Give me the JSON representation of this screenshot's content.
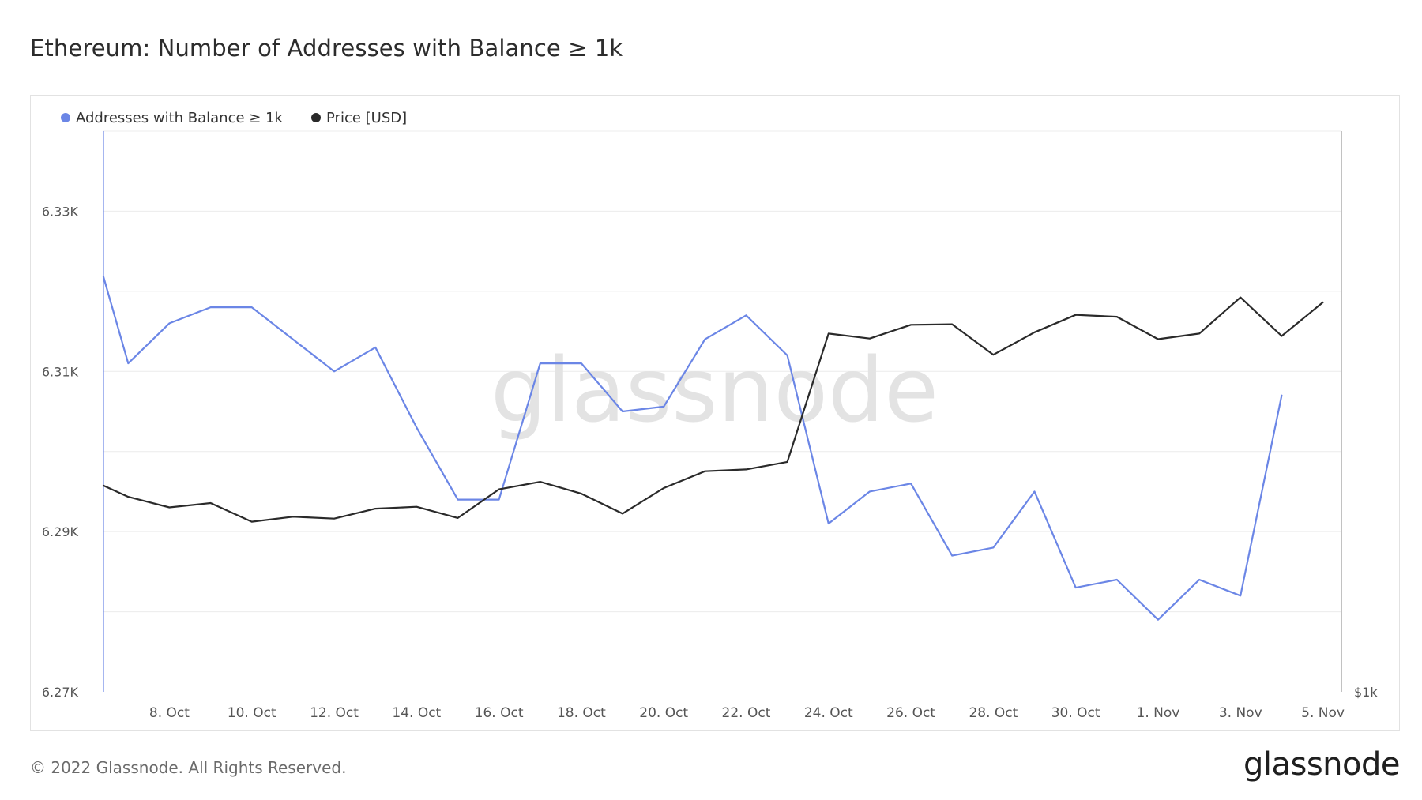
{
  "page": {
    "title": "Ethereum: Number of Addresses with Balance ≥ 1k",
    "copyright": "© 2022 Glassnode. All Rights Reserved.",
    "brand": "glassnode",
    "watermark": "glassnode"
  },
  "colors": {
    "addresses": "#6b86e6",
    "price": "#2a2a2a",
    "grid": "#ececec",
    "watermark": "#e3e3e3",
    "tick_text": "#555555"
  },
  "chart_data": {
    "type": "line",
    "legend_position": "top-left",
    "grid": true,
    "x_ticks": [
      "8. Oct",
      "10. Oct",
      "12. Oct",
      "14. Oct",
      "16. Oct",
      "18. Oct",
      "20. Oct",
      "22. Oct",
      "24. Oct",
      "26. Oct",
      "28. Oct",
      "30. Oct",
      "1. Nov",
      "3. Nov",
      "5. Nov"
    ],
    "x_tick_days": [
      8,
      10,
      12,
      14,
      16,
      18,
      20,
      22,
      24,
      26,
      28,
      30,
      32,
      34,
      36
    ],
    "x_range_days": [
      6.4,
      36.45
    ],
    "left_axis": {
      "ticks": [
        "6.27K",
        "6.29K",
        "6.31K",
        "6.33K"
      ],
      "tick_values": [
        6270,
        6290,
        6310,
        6330
      ],
      "range": [
        6270,
        6340
      ]
    },
    "right_axis": {
      "ticks": [
        "$1k"
      ]
    },
    "series": [
      {
        "name": "Addresses with Balance ≥ 1k",
        "axis": "left",
        "days": [
          6.4,
          7,
          8,
          9,
          10,
          11,
          12,
          13,
          14,
          15,
          16,
          17,
          18,
          19,
          20,
          21,
          22,
          23,
          24,
          25,
          26,
          27,
          28,
          29,
          30,
          31,
          32,
          33,
          34,
          35
        ],
        "values": [
          6321.8,
          6311,
          6316,
          6318,
          6318,
          6314,
          6310,
          6313,
          6303,
          6294,
          6294,
          6311,
          6311,
          6305,
          6305.6,
          6314,
          6317,
          6312,
          6291,
          6295,
          6296,
          6287,
          6288,
          6295,
          6283,
          6284,
          6279,
          6284,
          6282,
          6307
        ]
      },
      {
        "name": "Price [USD]",
        "axis": "right",
        "days": [
          6.4,
          7,
          8,
          9,
          10,
          11,
          12,
          13,
          14,
          15,
          16,
          17,
          18,
          19,
          20,
          21,
          22,
          23,
          24,
          25,
          26,
          27,
          28,
          29,
          30,
          31,
          32,
          33,
          34,
          35,
          36
        ],
        "values": [
          1331,
          1313,
          1296,
          1303,
          1273,
          1281,
          1278,
          1294,
          1297,
          1279,
          1325,
          1337,
          1318,
          1286,
          1327,
          1354,
          1357,
          1369,
          1575,
          1567,
          1589,
          1590,
          1541,
          1577,
          1605,
          1602,
          1566,
          1575,
          1633,
          1571,
          1625
        ]
      }
    ]
  }
}
